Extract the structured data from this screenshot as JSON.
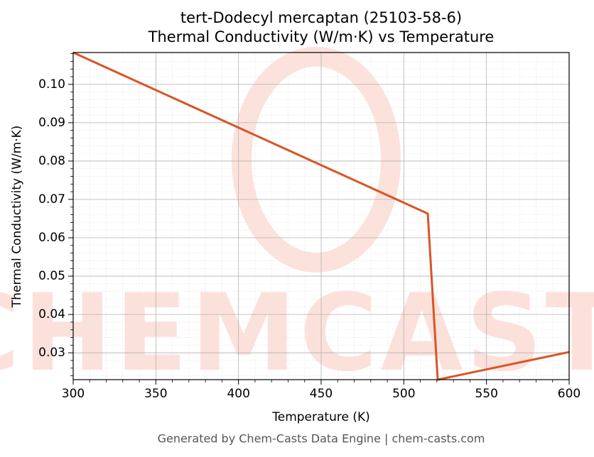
{
  "chart_data": {
    "type": "line",
    "title": "tert-Dodecyl mercaptan (25103-58-6)",
    "subtitle": "Thermal Conductivity (W/m·K) vs Temperature",
    "x_label": "Temperature (K)",
    "y_label": "Thermal Conductivity (W/m·K)",
    "footer": "Generated by Chem-Casts Data Engine | chem-casts.com",
    "watermark": "CHEMCASTS",
    "series": [
      {
        "name": "Thermal Conductivity",
        "color": "#d95525",
        "x": [
          300,
          514.5,
          520.5,
          600
        ],
        "values": [
          0.1083,
          0.0663,
          0.023,
          0.0302
        ]
      }
    ],
    "xlim": [
      300,
      600
    ],
    "ylim": [
      0.023,
      0.1083
    ],
    "xticks": [
      300,
      350,
      400,
      450,
      500,
      550,
      600
    ],
    "yticks": [
      0.03,
      0.04,
      0.05,
      0.06,
      0.07,
      0.08,
      0.09,
      {
        "value": 0.1,
        "label": "0.10"
      }
    ],
    "xminorticks": [
      310,
      320,
      330,
      340,
      360,
      370,
      380,
      390,
      410,
      420,
      430,
      440,
      460,
      470,
      480,
      490,
      510,
      520,
      530,
      540,
      560,
      570,
      580,
      590
    ],
    "yminorticks": [
      0.024,
      0.026,
      0.028,
      0.032,
      0.034,
      0.036,
      0.038,
      0.042,
      0.044,
      0.046,
      0.048,
      0.052,
      0.054,
      0.056,
      0.058,
      0.062,
      0.064,
      0.066,
      0.068,
      0.072,
      0.074,
      0.076,
      0.078,
      0.082,
      0.084,
      0.086,
      0.088,
      0.092,
      0.094,
      0.096,
      0.098,
      0.102,
      0.104,
      0.106,
      0.108
    ],
    "grid": true
  }
}
